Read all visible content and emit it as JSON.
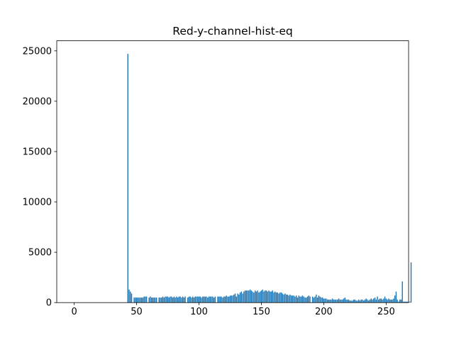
{
  "chart_data": {
    "type": "bar",
    "title": "Red-y-channel-hist-eq",
    "xlabel": "",
    "ylabel": "",
    "xlim": [
      -14,
      268
    ],
    "ylim": [
      0,
      26000
    ],
    "xticks": [
      0,
      50,
      100,
      150,
      200,
      250
    ],
    "yticks": [
      0,
      5000,
      10000,
      15000,
      20000,
      25000
    ],
    "grid": false,
    "bar_color": "#1f77b4",
    "series": [
      {
        "x_start": 0,
        "values": [
          0,
          0,
          0,
          0,
          0,
          0,
          0,
          0,
          0,
          0,
          0,
          0,
          0,
          0,
          0,
          0,
          0,
          0,
          0,
          0,
          0,
          0,
          0,
          0,
          0,
          0,
          0,
          0,
          0,
          0,
          0,
          0,
          0,
          0,
          0,
          0,
          0,
          0,
          0,
          0,
          0,
          0,
          0,
          24700,
          1300,
          1100,
          900,
          0,
          500,
          500,
          500,
          500,
          500,
          500,
          500,
          500,
          600,
          600,
          600,
          0,
          500,
          600,
          500,
          500,
          500,
          500,
          500,
          0,
          500,
          500,
          500,
          600,
          500,
          600,
          600,
          600,
          500,
          600,
          600,
          500,
          600,
          500,
          600,
          500,
          600,
          600,
          500,
          600,
          500,
          600,
          0,
          500,
          600,
          600,
          500,
          600,
          500,
          600,
          600,
          600,
          600,
          600,
          500,
          600,
          600,
          600,
          600,
          500,
          600,
          600,
          600,
          600,
          500,
          600,
          0,
          600,
          600,
          600,
          600,
          500,
          600,
          600,
          700,
          600,
          600,
          700,
          700,
          700,
          800,
          900,
          600,
          900,
          800,
          1000,
          1100,
          900,
          1100,
          1200,
          1200,
          1200,
          1200,
          1300,
          1200,
          1100,
          1000,
          1200,
          1100,
          1200,
          1000,
          1100,
          1200,
          1300,
          1100,
          1200,
          1200,
          1100,
          1200,
          1100,
          1100,
          1200,
          1000,
          1100,
          1000,
          1000,
          900,
          1000,
          1000,
          900,
          800,
          900,
          800,
          800,
          700,
          800,
          700,
          700,
          700,
          600,
          700,
          500,
          700,
          600,
          600,
          700,
          600,
          500,
          500,
          600,
          700,
          600,
          0,
          600,
          500,
          600,
          800,
          500,
          700,
          600,
          500,
          500,
          400,
          400,
          400,
          300,
          300,
          300,
          300,
          400,
          300,
          300,
          300,
          300,
          400,
          300,
          300,
          300,
          400,
          500,
          300,
          300,
          300,
          200,
          200,
          200,
          300,
          300,
          200,
          200,
          300,
          200,
          300,
          300,
          200,
          300,
          400,
          300,
          200,
          300,
          400,
          300,
          400,
          500,
          300,
          600,
          300,
          400,
          400,
          300,
          400,
          600,
          400,
          300,
          400,
          300,
          300,
          300,
          400,
          700,
          1100,
          300,
          100,
          300,
          300,
          2100,
          100,
          100,
          100,
          100,
          100,
          100,
          4000
        ]
      }
    ]
  }
}
